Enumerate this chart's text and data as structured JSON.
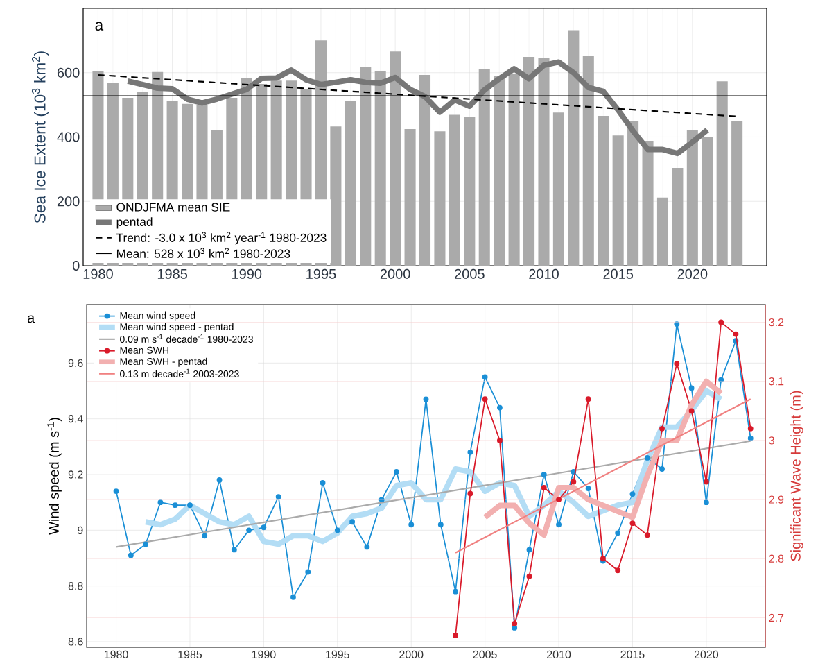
{
  "chart_data": [
    {
      "type": "bar",
      "ylabel": "Sea Ice Extent (10$^{3}$ km$^{2}$)",
      "annotations": [
        "a"
      ],
      "x": [
        1980,
        1981,
        1982,
        1983,
        1984,
        1985,
        1986,
        1987,
        1988,
        1989,
        1990,
        1991,
        1992,
        1993,
        1994,
        1995,
        1996,
        1997,
        1998,
        1999,
        2000,
        2001,
        2002,
        2003,
        2004,
        2005,
        2006,
        2007,
        2008,
        2009,
        2010,
        2011,
        2012,
        2013,
        2014,
        2015,
        2016,
        2017,
        2018,
        2019,
        2020,
        2021,
        2022,
        2023
      ],
      "xlim": [
        1979,
        2025
      ],
      "xticks": [
        1980,
        1985,
        1990,
        1995,
        2000,
        2005,
        2010,
        2015,
        2020
      ],
      "ylim": [
        0,
        800
      ],
      "yticks": [
        0,
        200,
        400,
        600
      ],
      "grid": true,
      "legend": "bottom left",
      "series": [
        {
          "name": "ONDJFMA mean SIE",
          "type": "bar",
          "color": "#aaaaaa",
          "values": [
            606,
            569,
            522,
            540,
            602,
            511,
            503,
            500,
            421,
            522,
            583,
            565,
            575,
            575,
            548,
            700,
            433,
            511,
            619,
            604,
            666,
            425,
            593,
            418,
            469,
            463,
            611,
            590,
            595,
            649,
            646,
            476,
            732,
            652,
            466,
            405,
            449,
            388,
            212,
            304,
            421,
            399,
            573,
            449
          ]
        },
        {
          "name": "pentad",
          "type": "line",
          "color": "#777777",
          "x": [
            1982,
            1983,
            1984,
            1985,
            1986,
            1987,
            1988,
            1989,
            1990,
            1991,
            1992,
            1993,
            1994,
            1995,
            1996,
            1997,
            1998,
            1999,
            2000,
            2001,
            2002,
            2003,
            2004,
            2005,
            2006,
            2007,
            2008,
            2009,
            2010,
            2011,
            2012,
            2013,
            2014,
            2015,
            2016,
            2017,
            2018,
            2019,
            2020,
            2021
          ],
          "values": [
            574,
            563,
            552,
            550,
            518,
            506,
            518,
            533,
            548,
            582,
            583,
            608,
            578,
            563,
            570,
            578,
            570,
            567,
            585,
            548,
            526,
            477,
            515,
            496,
            546,
            581,
            612,
            581,
            623,
            633,
            600,
            554,
            542,
            484,
            419,
            361,
            361,
            349,
            384,
            422
          ]
        },
        {
          "name": "Trend: -3.0 x 10$^{3}$ km$^{2}$ year$^{-1}$ 1980-2023",
          "type": "line",
          "line_style": "dashed",
          "color": "#000000",
          "x": [
            1980,
            2023
          ],
          "values": [
            593,
            464
          ]
        }
      ],
      "ref_lines": [
        {
          "axis": "y",
          "value": 528,
          "label": "Mean: 528 x 10$^{3}$ km$^{2}$ 1980-2023",
          "color": "#000000"
        }
      ]
    },
    {
      "type": "line",
      "ylabel": "Wind speed (m s$^{-1}$)",
      "y2label": "Significant Wave Height (m)",
      "annotations": [
        "a"
      ],
      "xlim": [
        1978,
        2024
      ],
      "xticks": [
        1980,
        1985,
        1990,
        1995,
        2000,
        2005,
        2010,
        2015,
        2020
      ],
      "ylim": [
        8.58,
        9.81
      ],
      "yticks": [
        8.6,
        8.8,
        9,
        9.2,
        9.4,
        9.6
      ],
      "y2lim": [
        2.65,
        3.23
      ],
      "y2ticks": [
        2.7,
        2.8,
        2.9,
        3,
        3.1,
        3.2
      ],
      "grid": true,
      "legend": "top left",
      "series": [
        {
          "name": "Mean wind speed",
          "color": "#1a8fd6",
          "marker": "circle",
          "x": [
            1980,
            1981,
            1982,
            1983,
            1984,
            1985,
            1986,
            1987,
            1988,
            1989,
            1990,
            1991,
            1992,
            1993,
            1994,
            1995,
            1996,
            1997,
            1998,
            1999,
            2000,
            2001,
            2002,
            2003,
            2004,
            2005,
            2006,
            2007,
            2008,
            2009,
            2010,
            2011,
            2012,
            2013,
            2014,
            2015,
            2016,
            2017,
            2018,
            2019,
            2020,
            2021,
            2022,
            2023
          ],
          "values": [
            9.14,
            8.91,
            8.95,
            9.1,
            9.09,
            9.09,
            8.98,
            9.18,
            8.93,
            9.0,
            9.01,
            9.12,
            8.76,
            8.85,
            9.17,
            9.0,
            9.03,
            8.94,
            9.11,
            9.21,
            9.02,
            9.47,
            9.02,
            8.78,
            9.28,
            9.55,
            9.44,
            8.65,
            8.93,
            9.2,
            9.02,
            9.21,
            9.15,
            8.89,
            8.99,
            9.13,
            9.26,
            9.22,
            9.74,
            9.51,
            9.1,
            9.54,
            9.68,
            9.33
          ]
        },
        {
          "name": "Mean wind speed - pentad",
          "color": "#b3ddf5",
          "x": [
            1982,
            1983,
            1984,
            1985,
            1986,
            1987,
            1988,
            1989,
            1990,
            1991,
            1992,
            1993,
            1994,
            1995,
            1996,
            1997,
            1998,
            1999,
            2000,
            2001,
            2002,
            2003,
            2004,
            2005,
            2006,
            2007,
            2008,
            2009,
            2010,
            2011,
            2012,
            2013,
            2014,
            2015,
            2016,
            2017,
            2018,
            2019,
            2020,
            2021
          ],
          "values": [
            9.03,
            9.02,
            9.04,
            9.09,
            9.06,
            9.03,
            9.02,
            9.05,
            8.96,
            8.95,
            8.98,
            8.98,
            8.96,
            8.99,
            9.05,
            9.06,
            9.08,
            9.16,
            9.17,
            9.11,
            9.11,
            9.22,
            9.21,
            9.14,
            9.17,
            9.16,
            9.05,
            9.09,
            9.14,
            9.1,
            9.05,
            9.07,
            9.09,
            9.1,
            9.25,
            9.37,
            9.37,
            9.43,
            9.5,
            9.47
          ]
        },
        {
          "name": "0.09 m s$^{-1}$ decade$^{-1}$ 1980-2023",
          "color": "#aaaaaa",
          "x": [
            1980,
            2023
          ],
          "values": [
            8.94,
            9.32
          ]
        },
        {
          "name": "Mean SWH",
          "color": "#d91a2a",
          "marker": "circle",
          "axis": "y2",
          "x": [
            2003,
            2004,
            2005,
            2006,
            2007,
            2008,
            2009,
            2010,
            2011,
            2012,
            2013,
            2014,
            2015,
            2016,
            2017,
            2018,
            2019,
            2020,
            2021,
            2022,
            2023
          ],
          "values": [
            2.67,
            2.91,
            3.07,
            3.0,
            2.69,
            2.77,
            2.92,
            2.9,
            2.93,
            3.07,
            2.8,
            2.78,
            2.86,
            2.84,
            3.02,
            3.13,
            3.05,
            2.93,
            3.2,
            3.18,
            3.02
          ]
        },
        {
          "name": "Mean SWH - pentad",
          "color": "#f2b0b0",
          "axis": "y2",
          "x": [
            2005,
            2006,
            2007,
            2008,
            2009,
            2010,
            2011,
            2012,
            2013,
            2014,
            2015,
            2016,
            2017,
            2018,
            2019,
            2020,
            2021
          ],
          "values": [
            2.87,
            2.89,
            2.89,
            2.86,
            2.84,
            2.92,
            2.92,
            2.9,
            2.89,
            2.88,
            2.87,
            2.94,
            3.0,
            3.0,
            3.06,
            3.1,
            3.08
          ]
        },
        {
          "name": "0.13 m decade$^{-1}$ 2003-2023",
          "color": "#f08080",
          "axis": "y2",
          "x": [
            2003,
            2023
          ],
          "values": [
            2.81,
            3.07
          ]
        }
      ]
    }
  ]
}
